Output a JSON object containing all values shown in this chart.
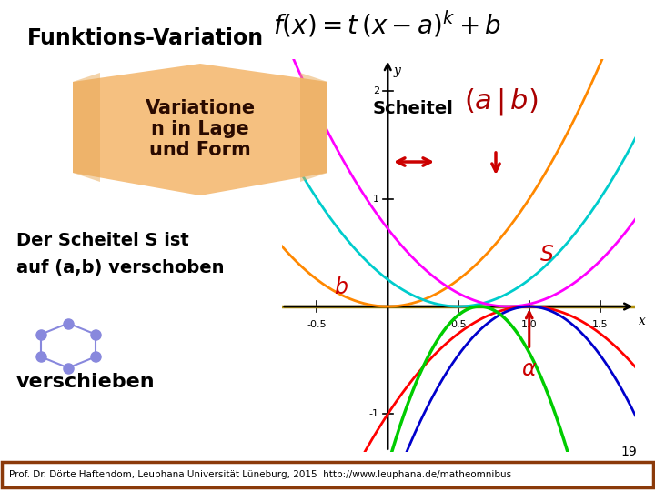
{
  "title": "Funktions-Variation",
  "subtitle": "Variatione\nn in Lage\nund Form",
  "scheitel_label": "Scheitel",
  "text_left1": "Der Scheitel S ist",
  "text_left2": "auf (a,b) verschoben",
  "text_left3": "verschieben",
  "footer": "Prof. Dr. Dörte Haftendom, Leuphana Universität Lüneburg, 2015  http://www.leuphana.de/matheomnibus",
  "page_num": "19",
  "banner_color": "#f5c080",
  "banner_edge_color": "#d4a060",
  "xlim": [
    -0.75,
    1.75
  ],
  "ylim": [
    -1.35,
    2.3
  ],
  "xticks": [
    -0.5,
    0.5,
    1.0,
    1.5
  ],
  "yticks": [
    -1,
    1,
    2
  ],
  "hline_y": 0.0,
  "hline_color": "#b09010",
  "hline_lw": 2.5,
  "arrow_color": "#cc0000",
  "bg_color": "#ffffff",
  "footer_border": "#8b3a0a",
  "curve_params": [
    [
      1.0,
      2,
      0.0,
      0.0,
      "#ff8800",
      2.0
    ],
    [
      1.0,
      2,
      0.5,
      0.0,
      "#00cccc",
      2.0
    ],
    [
      1.0,
      2,
      0.85,
      0.0,
      "#ff00ff",
      2.0
    ],
    [
      -1.0,
      2,
      1.0,
      0.0,
      "#ff0000",
      2.0
    ],
    [
      -1.8,
      2,
      1.0,
      0.0,
      "#0000cc",
      2.0
    ],
    [
      -3.5,
      2,
      0.65,
      0.0,
      "#00cc00",
      2.5
    ]
  ]
}
